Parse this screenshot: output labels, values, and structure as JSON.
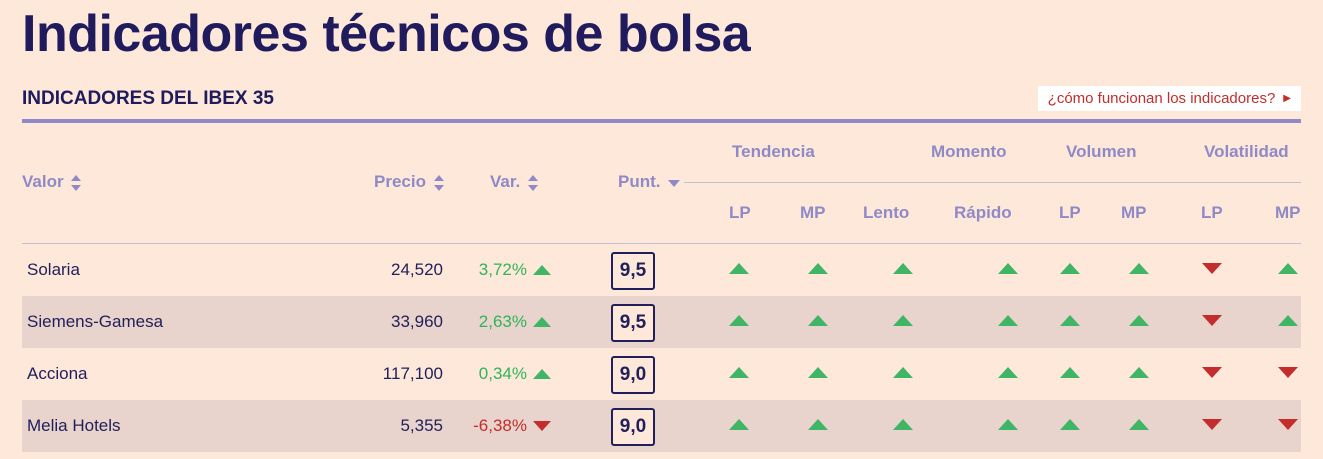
{
  "page": {
    "title": "Indicadores técnicos de bolsa",
    "section_title": "INDICADORES DEL IBEX 35",
    "help_link": "¿cómo funcionan los indicadores?"
  },
  "colors": {
    "background": "#fde8da",
    "title": "#1f1b5c",
    "header": "#8f8ac6",
    "positive": "#3fb565",
    "negative": "#c42d2d",
    "row_alt": "#e8d4cc"
  },
  "table": {
    "headers": {
      "valor": "Valor",
      "precio": "Precio",
      "var": "Var.",
      "punt": "Punt.",
      "groups": {
        "tendencia": "Tendencia",
        "momento": "Momento",
        "volumen": "Volumen",
        "volatilidad": "Volatilidad"
      },
      "sub": {
        "tendencia_lp": "LP",
        "tendencia_mp": "MP",
        "momento_lento": "Lento",
        "momento_rapido": "Rápido",
        "volumen_lp": "LP",
        "volumen_mp": "MP",
        "volatilidad_lp": "LP",
        "volatilidad_mp": "MP"
      }
    },
    "rows": [
      {
        "name": "Solaria",
        "price": "24,520",
        "var": "3,72%",
        "var_dir": "up",
        "score": "9,5",
        "indicators": [
          "up",
          "up",
          "up",
          "up",
          "up",
          "up",
          "down",
          "up"
        ]
      },
      {
        "name": "Siemens-Gamesa",
        "price": "33,960",
        "var": "2,63%",
        "var_dir": "up",
        "score": "9,5",
        "indicators": [
          "up",
          "up",
          "up",
          "up",
          "up",
          "up",
          "down",
          "up"
        ]
      },
      {
        "name": "Acciona",
        "price": "117,100",
        "var": "0,34%",
        "var_dir": "up",
        "score": "9,0",
        "indicators": [
          "up",
          "up",
          "up",
          "up",
          "up",
          "up",
          "down",
          "down"
        ]
      },
      {
        "name": "Melia Hotels",
        "price": "5,355",
        "var": "-6,38%",
        "var_dir": "down",
        "score": "9,0",
        "indicators": [
          "up",
          "up",
          "up",
          "up",
          "up",
          "up",
          "down",
          "down"
        ]
      }
    ]
  }
}
